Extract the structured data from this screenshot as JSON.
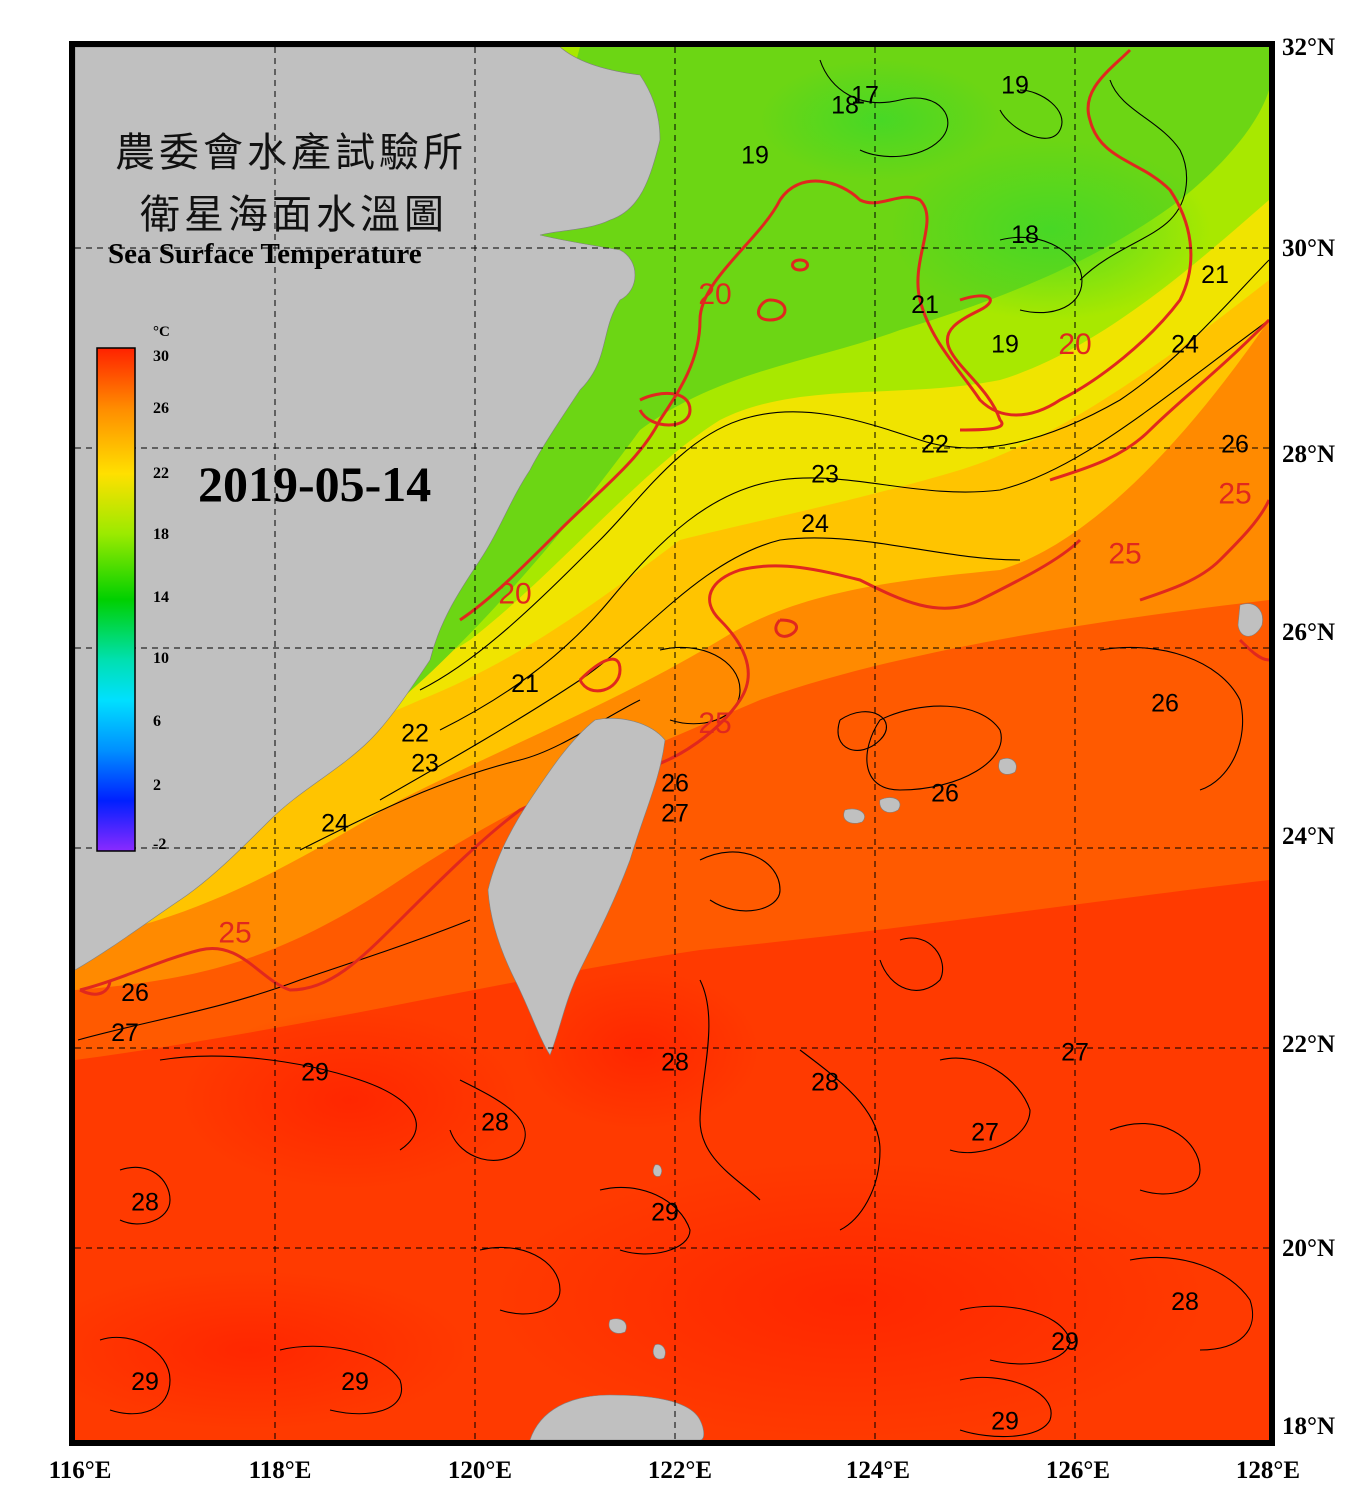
{
  "title": {
    "zh_line1": "農委會水產試驗所",
    "zh_line2": "衛星海面水溫圖",
    "en": "Sea Surface Temperature"
  },
  "date": "2019-05-14",
  "colorbar": {
    "unit": "°C",
    "ticks": [
      "30",
      "26",
      "22",
      "18",
      "14",
      "10",
      "6",
      "2",
      "-2"
    ],
    "range": [
      -2,
      30
    ]
  },
  "axes": {
    "x_ticks": [
      "116°E",
      "118°E",
      "120°E",
      "122°E",
      "124°E",
      "126°E",
      "128°E"
    ],
    "y_ticks": [
      "32°N",
      "30°N",
      "28°N",
      "26°N",
      "24°N",
      "22°N",
      "20°N",
      "18°N"
    ],
    "lon_range": [
      116,
      128
    ],
    "lat_range": [
      18,
      32
    ]
  },
  "isotherm_labels": [
    {
      "text": "17",
      "lon": 123.9,
      "lat": 31.5
    },
    {
      "text": "18",
      "lon": 123.7,
      "lat": 31.4
    },
    {
      "text": "19",
      "lon": 125.4,
      "lat": 31.6
    },
    {
      "text": "19",
      "lon": 122.8,
      "lat": 30.9
    },
    {
      "text": "18",
      "lon": 125.5,
      "lat": 30.1
    },
    {
      "text": "21",
      "lon": 124.5,
      "lat": 29.4
    },
    {
      "text": "19",
      "lon": 125.3,
      "lat": 29.0
    },
    {
      "text": "21",
      "lon": 127.4,
      "lat": 29.7
    },
    {
      "text": "24",
      "lon": 127.1,
      "lat": 29.0
    },
    {
      "text": "22",
      "lon": 124.6,
      "lat": 28.0
    },
    {
      "text": "23",
      "lon": 123.5,
      "lat": 27.7
    },
    {
      "text": "24",
      "lon": 123.4,
      "lat": 27.2
    },
    {
      "text": "26",
      "lon": 127.6,
      "lat": 28.0
    },
    {
      "text": "21",
      "lon": 120.5,
      "lat": 25.6
    },
    {
      "text": "22",
      "lon": 119.4,
      "lat": 25.1
    },
    {
      "text": "23",
      "lon": 119.5,
      "lat": 24.8
    },
    {
      "text": "24",
      "lon": 118.6,
      "lat": 24.2
    },
    {
      "text": "26",
      "lon": 126.9,
      "lat": 25.4
    },
    {
      "text": "26",
      "lon": 124.7,
      "lat": 24.5
    },
    {
      "text": "26",
      "lon": 122.0,
      "lat": 24.6
    },
    {
      "text": "27",
      "lon": 122.0,
      "lat": 24.3
    },
    {
      "text": "26",
      "lon": 116.6,
      "lat": 22.5
    },
    {
      "text": "27",
      "lon": 116.5,
      "lat": 22.1
    },
    {
      "text": "29",
      "lon": 118.4,
      "lat": 21.7
    },
    {
      "text": "28",
      "lon": 122.0,
      "lat": 21.8
    },
    {
      "text": "28",
      "lon": 123.5,
      "lat": 21.6
    },
    {
      "text": "27",
      "lon": 126.0,
      "lat": 21.9
    },
    {
      "text": "28",
      "lon": 120.2,
      "lat": 21.2
    },
    {
      "text": "27",
      "lon": 125.1,
      "lat": 21.1
    },
    {
      "text": "28",
      "lon": 116.7,
      "lat": 20.4
    },
    {
      "text": "29",
      "lon": 121.9,
      "lat": 20.3
    },
    {
      "text": "28",
      "lon": 127.1,
      "lat": 19.4
    },
    {
      "text": "29",
      "lon": 125.9,
      "lat": 19.0
    },
    {
      "text": "29",
      "lon": 116.7,
      "lat": 18.6
    },
    {
      "text": "29",
      "lon": 118.8,
      "lat": 18.6
    },
    {
      "text": "29",
      "lon": 125.3,
      "lat": 18.2
    }
  ],
  "isotherm_labels_red": [
    {
      "text": "20",
      "lon": 122.4,
      "lat": 29.5
    },
    {
      "text": "20",
      "lon": 126.0,
      "lat": 29.0
    },
    {
      "text": "20",
      "lon": 120.4,
      "lat": 26.5
    },
    {
      "text": "25",
      "lon": 126.5,
      "lat": 26.9
    },
    {
      "text": "25",
      "lon": 127.6,
      "lat": 27.5
    },
    {
      "text": "25",
      "lon": 122.4,
      "lat": 25.2
    },
    {
      "text": "25",
      "lon": 117.6,
      "lat": 23.1
    }
  ],
  "colors": {
    "land": "#c0c0c0",
    "isotherm_red": "#e0281e",
    "cold": "#6cd614",
    "warm": "#ff3a00"
  }
}
